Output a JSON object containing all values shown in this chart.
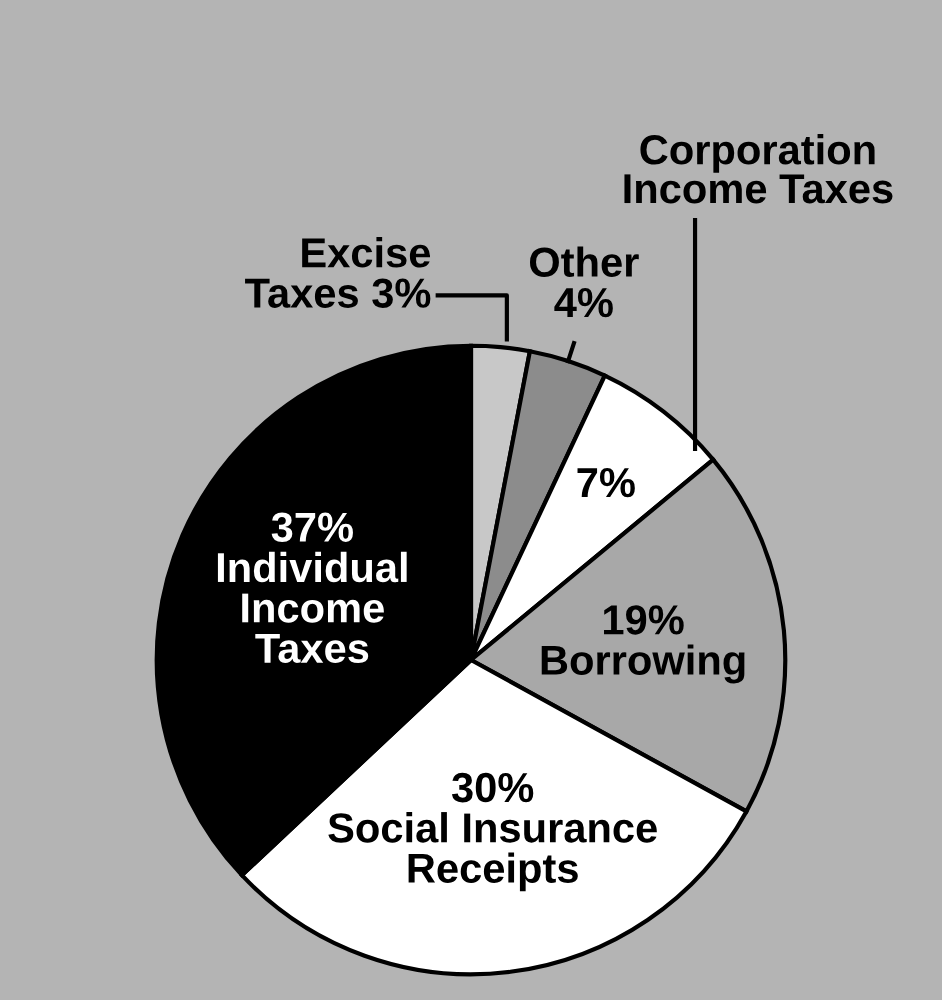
{
  "chart_data": {
    "type": "pie",
    "categories": [
      "Excise Taxes",
      "Other",
      "Corporation Income Taxes",
      "Borrowing",
      "Social Insurance Receipts",
      "Individual Income Taxes"
    ],
    "values": [
      3,
      4,
      7,
      19,
      30,
      37
    ],
    "value_labels": [
      "3%",
      "4%",
      "7%",
      "19%",
      "30%",
      "37%"
    ],
    "colors": [
      "#c8c8c8",
      "#8c8c8c",
      "#ffffff",
      "#a8a8a8",
      "#ffffff",
      "#000000"
    ]
  }
}
